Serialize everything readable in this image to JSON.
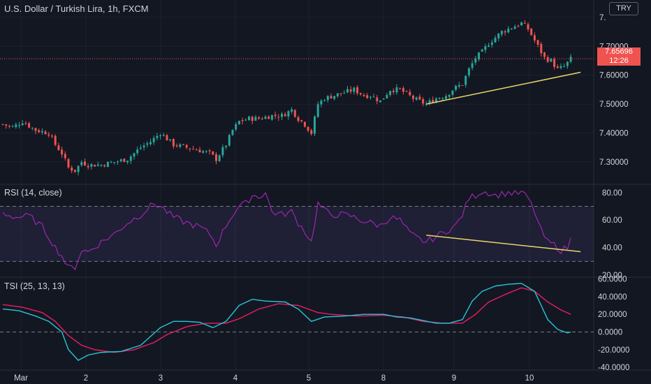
{
  "header": {
    "title": "U.S. Dollar / Turkish Lira, 1h, FXCM",
    "currency_badge": "TRY",
    "last_price": "7.65696",
    "countdown": "12:26"
  },
  "colors": {
    "background": "#131722",
    "grid": "#1e222d",
    "up": "#26a69a",
    "down": "#ef5350",
    "rsi_line": "#9c27b0",
    "rsi_band": "#7e57c2",
    "tsi_line": "#26c6da",
    "tsi_signal": "#e91e63",
    "trendline": "#e8d66a",
    "price_line": "#ef5350",
    "axis_text": "#d1d4dc"
  },
  "chart_data": [
    {
      "type": "candlestick",
      "title": "U.S. Dollar / Turkish Lira, 1h, FXCM",
      "x_tick_labels": [
        "Mar",
        "2",
        "3",
        "4",
        "5",
        "8",
        "9",
        "10"
      ],
      "y_tick_labels": [
        "7.30000",
        "7.40000",
        "7.50000",
        "7.60000",
        "7.70000",
        "7."
      ],
      "ylim": [
        7.225,
        7.86
      ],
      "close_path": [
        [
          0,
          7.43
        ],
        [
          3,
          7.42
        ],
        [
          6,
          7.44
        ],
        [
          10,
          7.41
        ],
        [
          14,
          7.4
        ],
        [
          16,
          7.36
        ],
        [
          18,
          7.33
        ],
        [
          20,
          7.28
        ],
        [
          22,
          7.27
        ],
        [
          24,
          7.3
        ],
        [
          26,
          7.29
        ],
        [
          30,
          7.29
        ],
        [
          34,
          7.3
        ],
        [
          38,
          7.31
        ],
        [
          42,
          7.35
        ],
        [
          45,
          7.37
        ],
        [
          48,
          7.4
        ],
        [
          50,
          7.38
        ],
        [
          52,
          7.36
        ],
        [
          56,
          7.35
        ],
        [
          60,
          7.34
        ],
        [
          63,
          7.33
        ],
        [
          65,
          7.31
        ],
        [
          68,
          7.36
        ],
        [
          70,
          7.41
        ],
        [
          72,
          7.44
        ],
        [
          75,
          7.45
        ],
        [
          78,
          7.45
        ],
        [
          82,
          7.46
        ],
        [
          85,
          7.46
        ],
        [
          88,
          7.48
        ],
        [
          90,
          7.45
        ],
        [
          92,
          7.43
        ],
        [
          94,
          7.4
        ],
        [
          96,
          7.5
        ],
        [
          98,
          7.52
        ],
        [
          101,
          7.53
        ],
        [
          104,
          7.54
        ],
        [
          107,
          7.55
        ],
        [
          110,
          7.53
        ],
        [
          112,
          7.53
        ],
        [
          115,
          7.51
        ],
        [
          118,
          7.55
        ],
        [
          121,
          7.55
        ],
        [
          125,
          7.52
        ],
        [
          127,
          7.51
        ],
        [
          129,
          7.5
        ],
        [
          132,
          7.52
        ],
        [
          135,
          7.53
        ],
        [
          137,
          7.55
        ],
        [
          140,
          7.57
        ],
        [
          142,
          7.62
        ],
        [
          144,
          7.66
        ],
        [
          146,
          7.68
        ],
        [
          148,
          7.71
        ],
        [
          150,
          7.73
        ],
        [
          152,
          7.75
        ],
        [
          154,
          7.76
        ],
        [
          156,
          7.77
        ],
        [
          158,
          7.78
        ],
        [
          160,
          7.76
        ],
        [
          162,
          7.72
        ],
        [
          164,
          7.68
        ],
        [
          165,
          7.66
        ],
        [
          167,
          7.65
        ],
        [
          169,
          7.62
        ],
        [
          171,
          7.63
        ],
        [
          173,
          7.656
        ]
      ],
      "n_candles": 174,
      "current_price": 7.65696,
      "trendline": {
        "from": [
          129,
          7.5
        ],
        "to": [
          176,
          7.61
        ]
      }
    },
    {
      "type": "line",
      "title": "RSI (14, close)",
      "y_tick_labels": [
        "20.00",
        "40.00",
        "60.00",
        "80.00"
      ],
      "ylim": [
        19,
        86
      ],
      "band": [
        30,
        70
      ],
      "series": [
        {
          "values_path": [
            [
              0,
              65
            ],
            [
              4,
              62
            ],
            [
              8,
              63
            ],
            [
              12,
              55
            ],
            [
              14,
              48
            ],
            [
              16,
              40
            ],
            [
              18,
              34
            ],
            [
              20,
              25
            ],
            [
              22,
              26
            ],
            [
              24,
              38
            ],
            [
              26,
              37
            ],
            [
              30,
              44
            ],
            [
              34,
              50
            ],
            [
              38,
              58
            ],
            [
              42,
              64
            ],
            [
              46,
              72
            ],
            [
              48,
              70
            ],
            [
              52,
              62
            ],
            [
              56,
              58
            ],
            [
              60,
              55
            ],
            [
              63,
              50
            ],
            [
              65,
              42
            ],
            [
              68,
              56
            ],
            [
              70,
              64
            ],
            [
              72,
              70
            ],
            [
              74,
              72
            ],
            [
              76,
              78
            ],
            [
              78,
              77
            ],
            [
              80,
              80
            ],
            [
              82,
              66
            ],
            [
              85,
              64
            ],
            [
              88,
              66
            ],
            [
              90,
              58
            ],
            [
              92,
              52
            ],
            [
              94,
              44
            ],
            [
              96,
              72
            ],
            [
              98,
              67
            ],
            [
              100,
              64
            ],
            [
              103,
              64
            ],
            [
              106,
              63
            ],
            [
              109,
              60
            ],
            [
              112,
              58
            ],
            [
              115,
              56
            ],
            [
              118,
              62
            ],
            [
              121,
              60
            ],
            [
              124,
              50
            ],
            [
              127,
              46
            ],
            [
              129,
              44
            ],
            [
              132,
              48
            ],
            [
              135,
              52
            ],
            [
              138,
              56
            ],
            [
              140,
              64
            ],
            [
              142,
              76
            ],
            [
              144,
              78
            ],
            [
              146,
              81
            ],
            [
              148,
              80
            ],
            [
              150,
              78
            ],
            [
              152,
              79
            ],
            [
              154,
              80
            ],
            [
              156,
              79
            ],
            [
              158,
              80
            ],
            [
              160,
              76
            ],
            [
              162,
              66
            ],
            [
              164,
              52
            ],
            [
              166,
              44
            ],
            [
              168,
              42
            ],
            [
              170,
              38
            ],
            [
              172,
              40
            ],
            [
              173,
              46
            ]
          ]
        }
      ],
      "divergence_line": {
        "from": [
          129,
          49
        ],
        "to": [
          176,
          37
        ]
      }
    },
    {
      "type": "line",
      "title": "TSI (25, 13, 13)",
      "y_tick_labels": [
        "-40.0000",
        "-20.0000",
        "0.0000",
        "20.0000",
        "40.0000",
        "60.0000"
      ],
      "ylim": [
        -40,
        60
      ],
      "zero_line": 0,
      "series": [
        {
          "name_key": "tsi",
          "values_path": [
            [
              0,
              26
            ],
            [
              5,
              24
            ],
            [
              10,
              18
            ],
            [
              14,
              12
            ],
            [
              18,
              0
            ],
            [
              20,
              -20
            ],
            [
              23,
              -32
            ],
            [
              26,
              -26
            ],
            [
              30,
              -23
            ],
            [
              36,
              -22
            ],
            [
              42,
              -15
            ],
            [
              48,
              5
            ],
            [
              52,
              12
            ],
            [
              56,
              12
            ],
            [
              60,
              11
            ],
            [
              64,
              5
            ],
            [
              68,
              12
            ],
            [
              72,
              30
            ],
            [
              76,
              37
            ],
            [
              80,
              35
            ],
            [
              86,
              34
            ],
            [
              90,
              26
            ],
            [
              94,
              12
            ],
            [
              98,
              17
            ],
            [
              104,
              18
            ],
            [
              110,
              20
            ],
            [
              116,
              20
            ],
            [
              120,
              17
            ],
            [
              124,
              16
            ],
            [
              128,
              13
            ],
            [
              132,
              10
            ],
            [
              136,
              10
            ],
            [
              140,
              14
            ],
            [
              143,
              35
            ],
            [
              146,
              46
            ],
            [
              150,
              52
            ],
            [
              154,
              54
            ],
            [
              158,
              55
            ],
            [
              162,
              46
            ],
            [
              166,
              14
            ],
            [
              169,
              3
            ],
            [
              172,
              -1
            ],
            [
              173,
              0
            ]
          ]
        },
        {
          "name_key": "signal",
          "values_path": [
            [
              0,
              31
            ],
            [
              6,
              28
            ],
            [
              12,
              22
            ],
            [
              16,
              12
            ],
            [
              20,
              -4
            ],
            [
              24,
              -15
            ],
            [
              28,
              -20
            ],
            [
              34,
              -23
            ],
            [
              40,
              -20
            ],
            [
              46,
              -12
            ],
            [
              50,
              -3
            ],
            [
              56,
              6
            ],
            [
              62,
              10
            ],
            [
              68,
              10
            ],
            [
              72,
              15
            ],
            [
              78,
              26
            ],
            [
              84,
              32
            ],
            [
              90,
              30
            ],
            [
              96,
              22
            ],
            [
              100,
              20
            ],
            [
              108,
              18
            ],
            [
              116,
              19
            ],
            [
              122,
              17
            ],
            [
              128,
              12
            ],
            [
              134,
              10
            ],
            [
              140,
              10
            ],
            [
              144,
              20
            ],
            [
              148,
              34
            ],
            [
              154,
              44
            ],
            [
              158,
              50
            ],
            [
              162,
              46
            ],
            [
              166,
              34
            ],
            [
              170,
              25
            ],
            [
              173,
              20
            ]
          ]
        }
      ]
    }
  ],
  "rsi_label": "RSI (14, close)",
  "tsi_label": "TSI (25, 13, 13)"
}
